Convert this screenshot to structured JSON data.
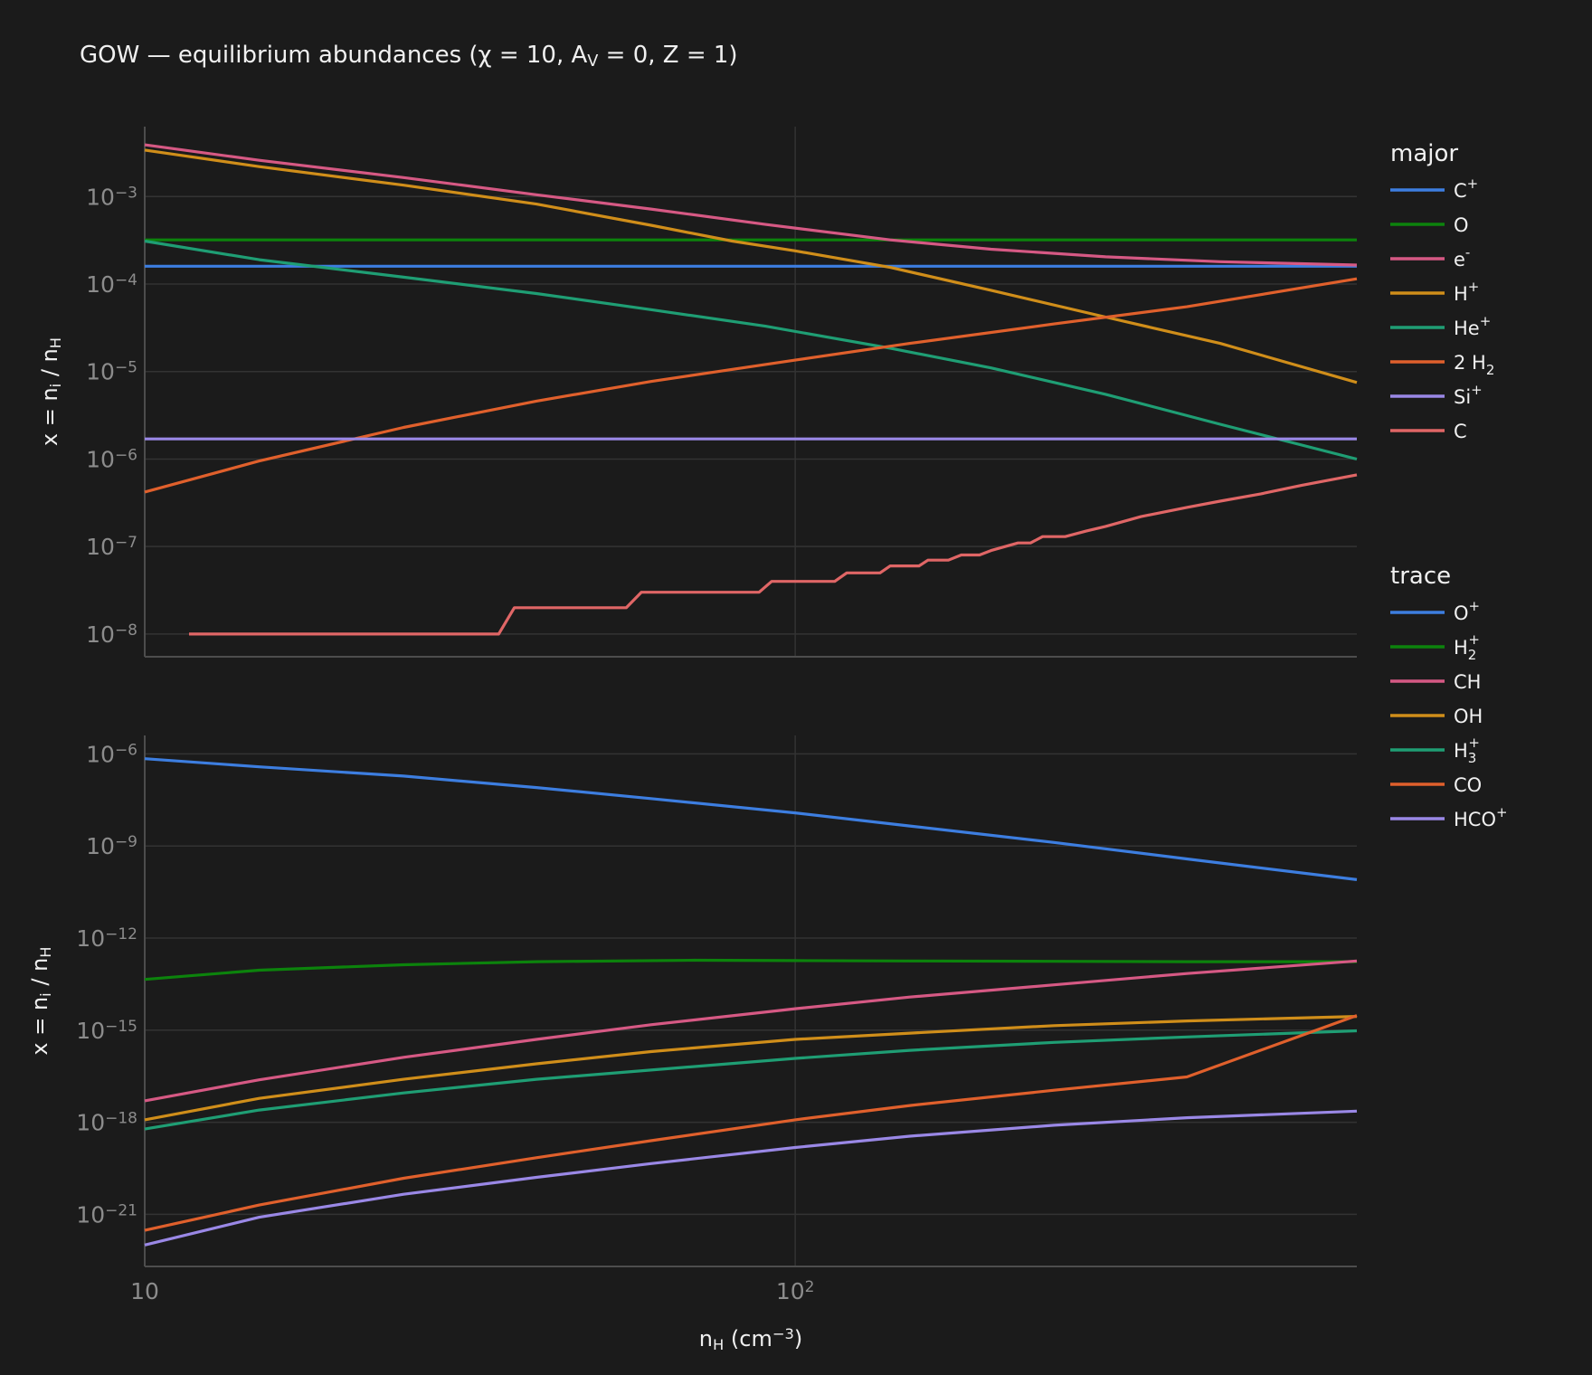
{
  "colors": {
    "background": "#1b1b1b",
    "grid": "#333333",
    "axis_line": "#4d4d4d",
    "tick_text": "#8c8c8c",
    "text": "#f0f0f0"
  },
  "chart_data": [
    {
      "type": "line",
      "title": "GOW — equilibrium abundances (χ = 10, A_V = 0, Z = 1)",
      "ylabel": "x = n_i / n_H",
      "xlabel": "",
      "xscale": "log",
      "yscale": "log",
      "xlim": [
        10,
        730
      ],
      "ylim": [
        5.5e-09,
        0.0063
      ],
      "x_ticks": [
        {
          "label": "",
          "value": 10
        },
        {
          "label": "",
          "value": 100
        }
      ],
      "y_ticks": [
        {
          "label": "10^-8",
          "value": 1e-08
        },
        {
          "label": "10^-7",
          "value": 1e-07
        },
        {
          "label": "10^-6",
          "value": 1e-06
        },
        {
          "label": "10^-5",
          "value": 1e-05
        },
        {
          "label": "10^-4",
          "value": 0.0001
        },
        {
          "label": "10^-3",
          "value": 0.001
        }
      ],
      "grid": true,
      "legend": {
        "title": "major",
        "position": "right"
      },
      "series": [
        {
          "name": "C+",
          "legend": [
            "C",
            "+",
            ""
          ],
          "color": "#3d7ee0",
          "x": [
            10,
            730
          ],
          "y": [
            0.00016,
            0.00016
          ]
        },
        {
          "name": "O",
          "legend": [
            "O",
            "",
            ""
          ],
          "color": "#0c830c",
          "x": [
            10,
            730
          ],
          "y": [
            0.00032,
            0.00032
          ]
        },
        {
          "name": "e-",
          "legend": [
            "e",
            "-",
            ""
          ],
          "color": "#d65984",
          "x": [
            10,
            15,
            25,
            40,
            60,
            90,
            140,
            200,
            300,
            450,
            730
          ],
          "y": [
            0.0039,
            0.0026,
            0.00165,
            0.00105,
            0.00072,
            0.00048,
            0.00032,
            0.00025,
            0.000205,
            0.00018,
            0.000165
          ]
        },
        {
          "name": "H+",
          "legend": [
            "H",
            "+",
            ""
          ],
          "color": "#d08e1a",
          "x": [
            10,
            15,
            25,
            40,
            60,
            80,
            100,
            140,
            200,
            300,
            450,
            730
          ],
          "y": [
            0.0034,
            0.0022,
            0.00135,
            0.00082,
            0.00047,
            0.00031,
            0.00024,
            0.000155,
            8.5e-05,
            4.2e-05,
            2.1e-05,
            7.5e-06
          ]
        },
        {
          "name": "He+",
          "legend": [
            "He",
            "+",
            ""
          ],
          "color": "#1f9e74",
          "x": [
            10,
            15,
            25,
            40,
            60,
            90,
            140,
            200,
            300,
            450,
            730
          ],
          "y": [
            0.00031,
            0.00019,
            0.00012,
            7.8e-05,
            5.1e-05,
            3.3e-05,
            1.85e-05,
            1.1e-05,
            5.5e-06,
            2.5e-06,
            1e-06
          ]
        },
        {
          "name": "2 H2",
          "legend": [
            "2 H",
            "",
            "2"
          ],
          "color": "#e0602c",
          "x": [
            10,
            15,
            25,
            40,
            60,
            100,
            150,
            250,
            400,
            730
          ],
          "y": [
            4.2e-07,
            9.5e-07,
            2.3e-06,
            4.6e-06,
            7.7e-06,
            1.35e-05,
            2.1e-05,
            3.5e-05,
            5.5e-05,
            0.000115
          ]
        },
        {
          "name": "Si+",
          "legend": [
            "Si",
            "+",
            ""
          ],
          "color": "#9a88e6",
          "x": [
            10,
            730
          ],
          "y": [
            1.7e-06,
            1.7e-06
          ]
        },
        {
          "name": "C",
          "legend": [
            "C",
            "",
            ""
          ],
          "color": "#e06666",
          "x": [
            11.7,
            35,
            37,
            55,
            58,
            88,
            92,
            115,
            120,
            135,
            140,
            155,
            160,
            172,
            180,
            192,
            200,
            220,
            230,
            240,
            260,
            280,
            300,
            340,
            400,
            450,
            520,
            600,
            730
          ],
          "y": [
            1e-08,
            1e-08,
            2e-08,
            2e-08,
            3e-08,
            3e-08,
            4e-08,
            4e-08,
            5e-08,
            5e-08,
            6e-08,
            6e-08,
            7e-08,
            7e-08,
            8e-08,
            8e-08,
            9e-08,
            1.1e-07,
            1.1e-07,
            1.3e-07,
            1.3e-07,
            1.5e-07,
            1.7e-07,
            2.2e-07,
            2.8e-07,
            3.3e-07,
            4e-07,
            5e-07,
            6.6e-07
          ]
        }
      ]
    },
    {
      "type": "line",
      "title": "",
      "ylabel": "x = n_i / n_H",
      "xlabel": "n_H (cm^-3)",
      "xscale": "log",
      "yscale": "log",
      "xlim": [
        10,
        730
      ],
      "ylim": [
        2e-23,
        4e-06
      ],
      "x_ticks": [
        {
          "label": "10",
          "value": 10
        },
        {
          "label": "10^2",
          "value": 100
        }
      ],
      "y_ticks": [
        {
          "label": "10^-21",
          "value": 1e-21
        },
        {
          "label": "10^-18",
          "value": 1e-18
        },
        {
          "label": "10^-15",
          "value": 1e-15
        },
        {
          "label": "10^-12",
          "value": 1e-12
        },
        {
          "label": "10^-9",
          "value": 1e-09
        },
        {
          "label": "10^-6",
          "value": 1e-06
        }
      ],
      "grid": true,
      "legend": {
        "title": "trace",
        "position": "right"
      },
      "series": [
        {
          "name": "O+",
          "legend": [
            "O",
            "+",
            ""
          ],
          "color": "#3d7ee0",
          "x": [
            10,
            15,
            25,
            40,
            60,
            100,
            150,
            250,
            400,
            730
          ],
          "y": [
            7e-07,
            3.8e-07,
            1.9e-07,
            8e-08,
            3.5e-08,
            1.2e-08,
            4.5e-09,
            1.3e-09,
            3.8e-10,
            8e-11
          ]
        },
        {
          "name": "H2+",
          "legend": [
            "H",
            "+",
            "2"
          ],
          "color": "#0c830c",
          "x": [
            10,
            15,
            25,
            40,
            70,
            100,
            150,
            250,
            400,
            730
          ],
          "y": [
            4.5e-14,
            9e-14,
            1.35e-13,
            1.7e-13,
            1.9e-13,
            1.85e-13,
            1.8e-13,
            1.75e-13,
            1.7e-13,
            1.7e-13
          ]
        },
        {
          "name": "CH",
          "legend": [
            "CH",
            "",
            ""
          ],
          "color": "#d65984",
          "x": [
            10,
            15,
            25,
            40,
            60,
            100,
            150,
            250,
            400,
            730
          ],
          "y": [
            5e-18,
            2.4e-17,
            1.3e-16,
            5e-16,
            1.5e-15,
            5e-15,
            1.2e-14,
            3e-14,
            7e-14,
            1.8e-13
          ]
        },
        {
          "name": "OH",
          "legend": [
            "OH",
            "",
            ""
          ],
          "color": "#d08e1a",
          "x": [
            10,
            15,
            25,
            40,
            60,
            100,
            150,
            250,
            400,
            730
          ],
          "y": [
            1.2e-18,
            6e-18,
            2.5e-17,
            8e-17,
            2e-16,
            5e-16,
            8e-16,
            1.4e-15,
            2e-15,
            2.8e-15
          ]
        },
        {
          "name": "H3+",
          "legend": [
            "H",
            "+",
            "3"
          ],
          "color": "#1f9e74",
          "x": [
            10,
            15,
            25,
            40,
            60,
            100,
            150,
            250,
            400,
            730
          ],
          "y": [
            6e-19,
            2.5e-18,
            9e-18,
            2.5e-17,
            5e-17,
            1.2e-16,
            2.2e-16,
            4e-16,
            6e-16,
            9.5e-16
          ]
        },
        {
          "name": "CO",
          "legend": [
            "CO",
            "",
            ""
          ],
          "color": "#e0602c",
          "x": [
            10,
            15,
            25,
            40,
            60,
            100,
            150,
            250,
            400,
            730
          ],
          "y": [
            3e-22,
            2e-21,
            1.5e-20,
            7e-20,
            2.5e-19,
            1.2e-18,
            3.5e-18,
            1.1e-17,
            3e-17,
            3e-15
          ]
        },
        {
          "name": "HCO+",
          "legend": [
            "HCO",
            "+",
            ""
          ],
          "color": "#9a88e6",
          "x": [
            10,
            15,
            25,
            40,
            60,
            100,
            150,
            250,
            400,
            730
          ],
          "y": [
            1e-22,
            8e-22,
            4.5e-21,
            1.6e-20,
            4.5e-20,
            1.5e-19,
            3.5e-19,
            8e-19,
            1.4e-18,
            2.3e-18
          ]
        }
      ]
    }
  ]
}
